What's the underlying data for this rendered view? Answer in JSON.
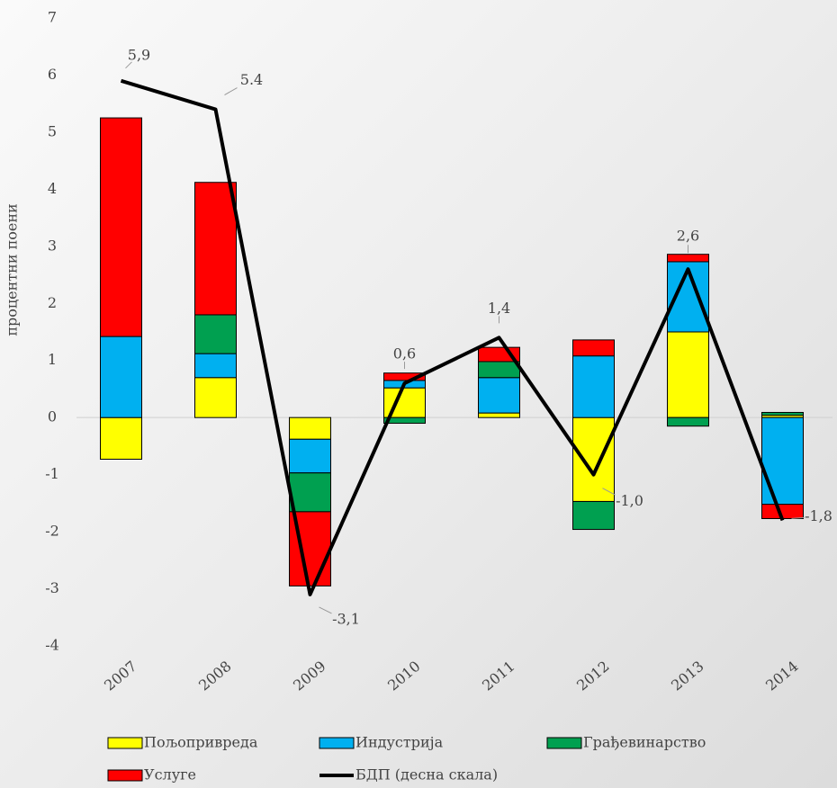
{
  "chart_data": {
    "type": "bar",
    "y_label": "процентни поени",
    "categories": [
      "2007",
      "2008",
      "2009",
      "2010",
      "2011",
      "2012",
      "2013",
      "2014"
    ],
    "series": [
      {
        "name": "Пољопривреда",
        "type": "bar",
        "color": "#ffff00",
        "values": [
          -0.73,
          0.7,
          -0.38,
          0.52,
          0.08,
          -1.47,
          1.5,
          0.04
        ]
      },
      {
        "name": "Индустрија",
        "type": "bar",
        "color": "#00b0f0",
        "values": [
          1.42,
          0.42,
          -0.59,
          0.13,
          0.62,
          1.08,
          1.23,
          -1.52
        ]
      },
      {
        "name": "Грађевинарство",
        "type": "bar",
        "color": "#00a050",
        "values": [
          0,
          0.68,
          -0.68,
          -0.1,
          0.28,
          -0.49,
          -0.15,
          0.05
        ]
      },
      {
        "name": "Услуге",
        "type": "bar",
        "color": "#ff0000",
        "values": [
          3.83,
          2.32,
          -1.3,
          0.13,
          0.25,
          0.28,
          0.13,
          -0.25
        ]
      },
      {
        "name": "БДП (десна скала)",
        "type": "line",
        "color": "#000000",
        "values": [
          5.9,
          5.4,
          -3.1,
          0.6,
          1.4,
          -1.0,
          2.6,
          -1.8
        ],
        "value_labels": [
          "5,9",
          "5.4",
          "-3,1",
          "0,6",
          "1,4",
          "-1,0",
          "2,6",
          "-1,8"
        ]
      }
    ],
    "ylim": [
      -4,
      7
    ],
    "yticks": [
      -4,
      -3,
      -2,
      -1,
      0,
      1,
      2,
      3,
      4,
      5,
      6,
      7
    ]
  }
}
